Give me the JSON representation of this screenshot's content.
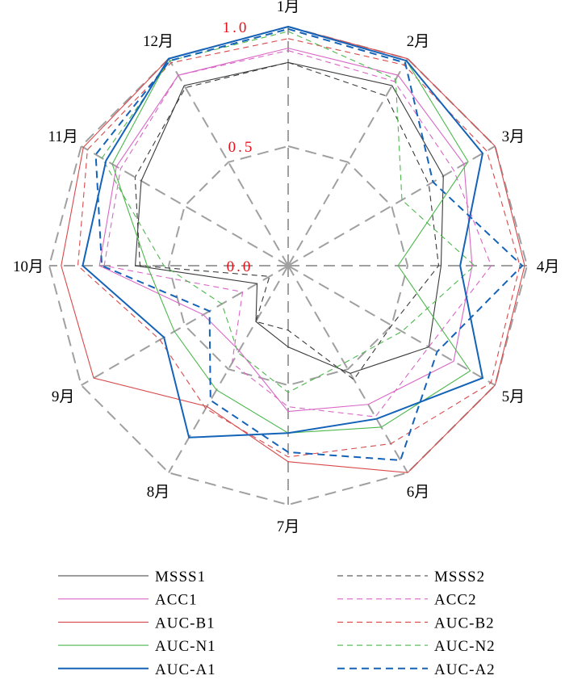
{
  "chart_data": {
    "type": "radar",
    "title": "",
    "categories": [
      "1月",
      "2月",
      "3月",
      "4月",
      "5月",
      "6月",
      "7月",
      "8月",
      "9月",
      "10月",
      "11月",
      "12月"
    ],
    "rlim": [
      0,
      1
    ],
    "rticks": [
      "0.0",
      "0.5",
      "1.0"
    ],
    "rtick_values": [
      0,
      0.5,
      1.0
    ],
    "grid": true,
    "legend_placement": "bottom",
    "series": [
      {
        "name": "MSSS1",
        "color": "#3a3a3a",
        "dash": false,
        "width": 1.1,
        "values": [
          0.85,
          0.87,
          0.75,
          0.64,
          0.68,
          0.52,
          0.34,
          0.27,
          0.15,
          0.64,
          0.71,
          0.87
        ]
      },
      {
        "name": "MSSS2",
        "color": "#3a3a3a",
        "dash": true,
        "width": 1.1,
        "values": [
          0.85,
          0.82,
          0.68,
          0.63,
          0.5,
          0.55,
          0.27,
          0.27,
          0.09,
          0.62,
          0.74,
          0.86
        ]
      },
      {
        "name": "ACC1",
        "color": "#d966c6",
        "dash": false,
        "width": 1.1,
        "values": [
          0.91,
          0.92,
          0.85,
          0.77,
          0.8,
          0.67,
          0.61,
          0.41,
          0.41,
          0.79,
          0.83,
          0.92
        ]
      },
      {
        "name": "ACC2",
        "color": "#d966c6",
        "dash": true,
        "width": 1.1,
        "values": [
          0.9,
          0.89,
          0.8,
          0.85,
          0.68,
          0.73,
          0.59,
          0.47,
          0.22,
          0.77,
          0.81,
          0.92
        ]
      },
      {
        "name": "AUC-B1",
        "color": "#d9484a",
        "dash": false,
        "width": 1.1,
        "values": [
          1.0,
          1.0,
          1.0,
          0.99,
          1.0,
          1.0,
          0.82,
          0.68,
          0.94,
          0.95,
          0.99,
          1.0
        ]
      },
      {
        "name": "AUC-B2",
        "color": "#d9484a",
        "dash": true,
        "width": 1.1,
        "values": [
          0.95,
          0.97,
          0.96,
          0.97,
          0.98,
          0.86,
          0.8,
          0.69,
          0.62,
          0.88,
          0.97,
          0.98
        ]
      },
      {
        "name": "AUC-N1",
        "color": "#4cb84c",
        "dash": false,
        "width": 1.1,
        "values": [
          1.0,
          0.99,
          0.87,
          0.46,
          0.88,
          0.78,
          0.7,
          0.6,
          0.55,
          0.59,
          0.85,
          1.0
        ]
      },
      {
        "name": "AUC-N2",
        "color": "#4cb84c",
        "dash": true,
        "width": 1.1,
        "values": [
          0.98,
          0.9,
          0.55,
          0.78,
          0.55,
          0.47,
          0.53,
          0.42,
          0.32,
          0.52,
          0.9,
          0.99
        ]
      },
      {
        "name": "AUC-A1",
        "color": "#1463b8",
        "dash": false,
        "width": 2,
        "values": [
          1.0,
          0.99,
          0.94,
          0.72,
          0.94,
          0.74,
          0.7,
          0.83,
          0.6,
          0.86,
          0.88,
          1.0
        ]
      },
      {
        "name": "AUC-A2",
        "color": "#1463b8",
        "dash": true,
        "width": 2,
        "values": [
          0.99,
          0.98,
          0.7,
          0.98,
          0.72,
          0.94,
          0.78,
          0.65,
          0.38,
          0.78,
          0.93,
          0.99
        ]
      }
    ]
  }
}
